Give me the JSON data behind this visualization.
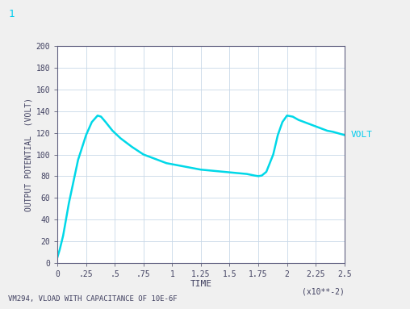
{
  "title": "1",
  "xlabel": "TIME",
  "ylabel": "OUTPUT POTENTIAL  (VOLT)",
  "xlabel_scale": "(x10**-2)",
  "subtitle": "VM294, VLOAD WITH CAPACITANCE OF 10E-6F",
  "legend_label": "VOLT",
  "xlim": [
    0,
    2.5
  ],
  "ylim": [
    0,
    200
  ],
  "xticks": [
    0,
    0.25,
    0.5,
    0.75,
    1.0,
    1.25,
    1.5,
    1.75,
    2.0,
    2.25,
    2.5
  ],
  "xticklabels": [
    "0",
    ".25",
    ".5",
    ".75",
    "1",
    "1.25",
    "1.5",
    "1.75",
    "2",
    "2.25",
    "2.5"
  ],
  "yticks": [
    0,
    20,
    40,
    60,
    80,
    100,
    120,
    140,
    160,
    180,
    200
  ],
  "background_color": "#f0f0f0",
  "plot_bg_color": "#ffffff",
  "line_color": "#00d8e8",
  "grid_color": "#c8d8e8",
  "text_color": "#404060",
  "title_color": "#00ccee",
  "legend_color": "#00ccee",
  "axis_color": "#606080",
  "curve_x": [
    0,
    0.02,
    0.05,
    0.1,
    0.18,
    0.25,
    0.3,
    0.35,
    0.38,
    0.42,
    0.48,
    0.55,
    0.65,
    0.75,
    0.85,
    0.95,
    1.05,
    1.15,
    1.25,
    1.35,
    1.45,
    1.55,
    1.65,
    1.72,
    1.75,
    1.78,
    1.82,
    1.88,
    1.92,
    1.96,
    2.0,
    2.05,
    2.1,
    2.15,
    2.2,
    2.25,
    2.3,
    2.35,
    2.4,
    2.45,
    2.5
  ],
  "curve_y": [
    5,
    12,
    25,
    55,
    95,
    118,
    130,
    136,
    135,
    130,
    122,
    115,
    107,
    100,
    96,
    92,
    90,
    88,
    86,
    85,
    84,
    83,
    82,
    80.5,
    80,
    80.5,
    84,
    100,
    118,
    130,
    136,
    135,
    132,
    130,
    128,
    126,
    124,
    122,
    121,
    119.5,
    118
  ]
}
